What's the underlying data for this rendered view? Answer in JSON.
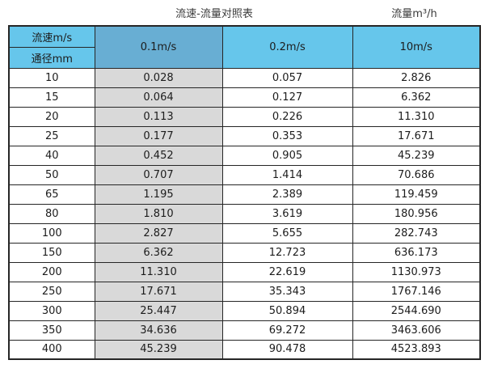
{
  "page": {
    "title": "流速-流量对照表",
    "flow_unit_label": "流量m³/h"
  },
  "colors": {
    "header_light_blue": "#66C6EB",
    "header_dark_blue": "#68AED3",
    "grey_column": "#D9D9D9",
    "border": "#262626"
  },
  "table": {
    "corner": {
      "top": "流速m/s",
      "bottom": "通径mm"
    },
    "velocity_columns": [
      "0.1m/s",
      "0.2m/s",
      "10m/s"
    ],
    "rows": [
      {
        "diameter": "10",
        "values": [
          "0.028",
          "0.057",
          "2.826"
        ]
      },
      {
        "diameter": "15",
        "values": [
          "0.064",
          "0.127",
          "6.362"
        ]
      },
      {
        "diameter": "20",
        "values": [
          "0.113",
          "0.226",
          "11.310"
        ]
      },
      {
        "diameter": "25",
        "values": [
          "0.177",
          "0.353",
          "17.671"
        ]
      },
      {
        "diameter": "40",
        "values": [
          "0.452",
          "0.905",
          "45.239"
        ]
      },
      {
        "diameter": "50",
        "values": [
          "0.707",
          "1.414",
          "70.686"
        ]
      },
      {
        "diameter": "65",
        "values": [
          "1.195",
          "2.389",
          "119.459"
        ]
      },
      {
        "diameter": "80",
        "values": [
          "1.810",
          "3.619",
          "180.956"
        ]
      },
      {
        "diameter": "100",
        "values": [
          "2.827",
          "5.655",
          "282.743"
        ]
      },
      {
        "diameter": "150",
        "values": [
          "6.362",
          "12.723",
          "636.173"
        ]
      },
      {
        "diameter": "200",
        "values": [
          "11.310",
          "22.619",
          "1130.973"
        ]
      },
      {
        "diameter": "250",
        "values": [
          "17.671",
          "35.343",
          "1767.146"
        ]
      },
      {
        "diameter": "300",
        "values": [
          "25.447",
          "50.894",
          "2544.690"
        ]
      },
      {
        "diameter": "350",
        "values": [
          "34.636",
          "69.272",
          "3463.606"
        ]
      },
      {
        "diameter": "400",
        "values": [
          "45.239",
          "90.478",
          "4523.893"
        ]
      }
    ]
  },
  "chart_data": {
    "type": "table",
    "title": "流速-流量对照表",
    "value_unit": "流量m³/h",
    "row_header": "通径mm",
    "column_header": "流速m/s",
    "categories": [
      "10",
      "15",
      "20",
      "25",
      "40",
      "50",
      "65",
      "80",
      "100",
      "150",
      "200",
      "250",
      "300",
      "350",
      "400"
    ],
    "series": [
      {
        "name": "0.1m/s",
        "values": [
          "0.028",
          "0.064",
          "0.113",
          "0.177",
          "0.452",
          "0.707",
          "1.195",
          "1.810",
          "2.827",
          "6.362",
          "11.310",
          "17.671",
          "25.447",
          "34.636",
          "45.239"
        ]
      },
      {
        "name": "0.2m/s",
        "values": [
          "0.057",
          "0.127",
          "0.226",
          "0.353",
          "0.905",
          "1.414",
          "2.389",
          "3.619",
          "5.655",
          "12.723",
          "22.619",
          "35.343",
          "50.894",
          "69.272",
          "90.478"
        ]
      },
      {
        "name": "10m/s",
        "values": [
          "2.826",
          "6.362",
          "11.310",
          "17.671",
          "45.239",
          "70.686",
          "119.459",
          "180.956",
          "282.743",
          "636.173",
          "1130.973",
          "1767.146",
          "2544.690",
          "3463.606",
          "4523.893"
        ]
      }
    ]
  }
}
